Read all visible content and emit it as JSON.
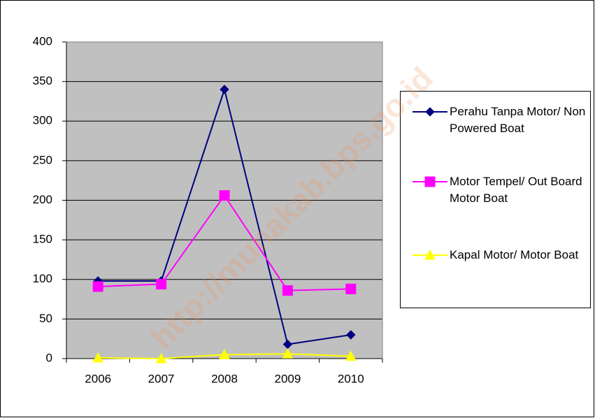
{
  "chart_data": {
    "type": "line",
    "categories": [
      "2006",
      "2007",
      "2008",
      "2009",
      "2010"
    ],
    "series": [
      {
        "name": "Perahu Tanpa Motor/ Non Powered Boat",
        "color": "#000080",
        "marker": "diamond",
        "values": [
          98,
          98,
          340,
          18,
          30
        ]
      },
      {
        "name": "Motor Tempel/ Out Board Motor Boat",
        "color": "#ff00ff",
        "marker": "square",
        "values": [
          91,
          94,
          206,
          86,
          88
        ]
      },
      {
        "name": "Kapal Motor/ Motor Boat",
        "color": "#ffff00",
        "marker": "triangle",
        "values": [
          1,
          0,
          5,
          6,
          3
        ]
      }
    ],
    "ylim": [
      0,
      400
    ],
    "yticks": [
      0,
      50,
      100,
      150,
      200,
      250,
      300,
      350,
      400
    ],
    "grid": true,
    "legend": "right",
    "watermark": "http://munakab.bps.go.id"
  }
}
